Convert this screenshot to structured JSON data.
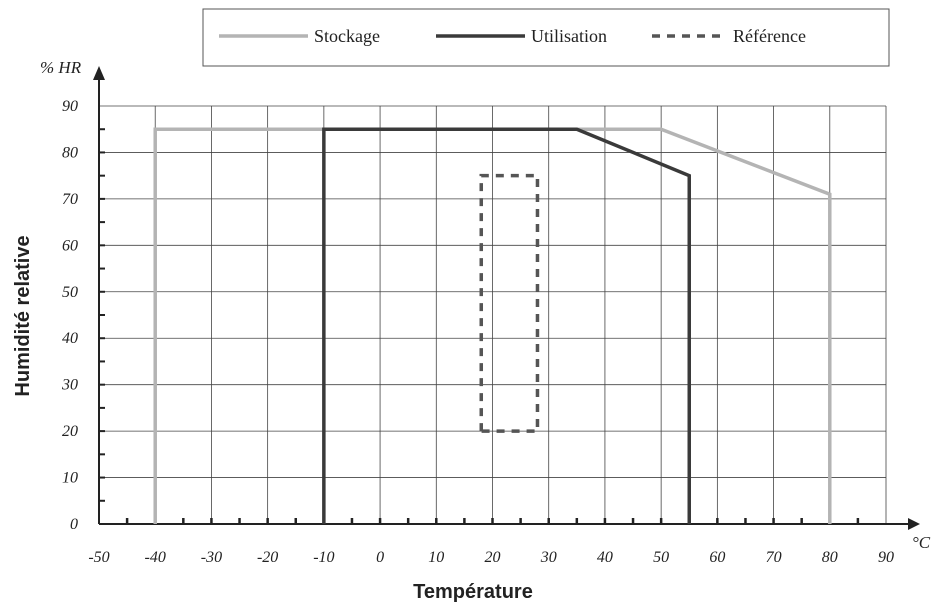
{
  "chart_data": {
    "type": "line",
    "xlabel": "Température",
    "ylabel": "Humidité relative",
    "x_unit": "°C",
    "y_unit": "% HR",
    "xlim": [
      -50,
      90
    ],
    "ylim": [
      0,
      90
    ],
    "x_ticks": [
      "-50",
      "-40",
      "-30",
      "-20",
      "-10",
      "0",
      "10",
      "20",
      "30",
      "40",
      "50",
      "60",
      "70",
      "80",
      "90"
    ],
    "y_ticks": [
      "0",
      "10",
      "20",
      "30",
      "40",
      "50",
      "60",
      "70",
      "80",
      "90"
    ],
    "grid": true,
    "legend_position": "top",
    "series": [
      {
        "name": "Stockage",
        "color": "#b4b4b4",
        "style": "solid",
        "points": [
          [
            -40,
            0
          ],
          [
            -40,
            85
          ],
          [
            50,
            85
          ],
          [
            80,
            71
          ],
          [
            80,
            0
          ]
        ]
      },
      {
        "name": "Utilisation",
        "color": "#3a3a3a",
        "style": "solid",
        "points": [
          [
            -10,
            0
          ],
          [
            -10,
            85
          ],
          [
            35,
            85
          ],
          [
            55,
            75
          ],
          [
            55,
            0
          ]
        ]
      },
      {
        "name": "Référence",
        "color": "#555555",
        "style": "dashed",
        "points": [
          [
            18,
            20
          ],
          [
            18,
            75
          ],
          [
            28,
            75
          ],
          [
            28,
            20
          ],
          [
            18,
            20
          ]
        ]
      }
    ]
  }
}
